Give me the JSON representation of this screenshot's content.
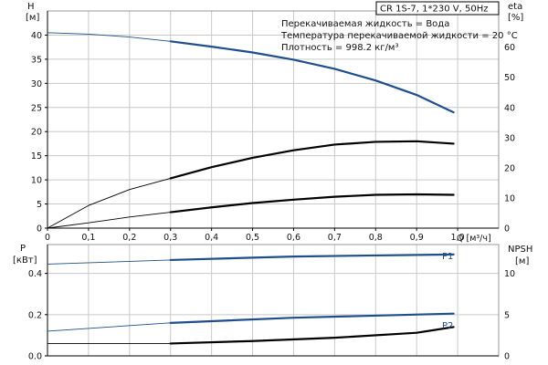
{
  "chart_data": [
    {
      "type": "line",
      "name": "top-performance",
      "ylabel": "H",
      "yunit": "[м]",
      "y2label": "eta",
      "y2unit": "[%]",
      "xlabel": "Q [м³/ч]",
      "xlim": [
        0,
        1.1
      ],
      "ylim": [
        0,
        45
      ],
      "y2lim": [
        0,
        72
      ],
      "xticks": [
        "0",
        "0,1",
        "0,2",
        "0,3",
        "0,4",
        "0,5",
        "0,6",
        "0,7",
        "0,8",
        "0,9",
        "1,0"
      ],
      "yticks": [
        "0",
        "5",
        "10",
        "15",
        "20",
        "25",
        "30",
        "35",
        "40"
      ],
      "y2ticks": [
        "0",
        "10",
        "20",
        "30",
        "40",
        "50",
        "60"
      ],
      "info_box": "CR 1S-7, 1*230 V, 50Hz",
      "annotations": [
        "Перекачиваемая жидкость = Вода",
        "Температура перекачиваемой жидкости = 20 °C",
        "Плотность = 998.2 кг/м³"
      ],
      "series": [
        {
          "axis": "left",
          "color": "#1f4e8c",
          "duty_start": 0.3,
          "x": [
            0,
            0.1,
            0.2,
            0.3,
            0.4,
            0.5,
            0.6,
            0.7,
            0.8,
            0.9,
            0.99
          ],
          "values": [
            40.5,
            40.2,
            39.6,
            38.7,
            37.6,
            36.4,
            34.9,
            33.0,
            30.6,
            27.6,
            24.0
          ]
        },
        {
          "axis": "right",
          "color": "#000000",
          "duty_start": 0.3,
          "x": [
            0,
            0.1,
            0.2,
            0.3,
            0.4,
            0.5,
            0.6,
            0.7,
            0.8,
            0.9,
            0.99
          ],
          "values": [
            0,
            7.5,
            12.8,
            16.5,
            20.2,
            23.3,
            25.8,
            27.7,
            28.6,
            28.8,
            28.0
          ]
        },
        {
          "axis": "left",
          "color": "#000000",
          "duty_start": 0.3,
          "x": [
            0,
            0.1,
            0.2,
            0.3,
            0.4,
            0.5,
            0.6,
            0.7,
            0.8,
            0.9,
            0.99
          ],
          "values": [
            0,
            1.1,
            2.3,
            3.3,
            4.3,
            5.2,
            5.9,
            6.5,
            6.9,
            7.0,
            6.9
          ]
        }
      ]
    },
    {
      "type": "line",
      "name": "bottom-power-npsh",
      "ylabel": "P",
      "yunit": "[кВт]",
      "y2label": "NPSH",
      "y2unit": "[м]",
      "xlim": [
        0,
        1.1
      ],
      "ylim": [
        0,
        0.54
      ],
      "y2lim": [
        0,
        13.5
      ],
      "yticks": [
        "0.0",
        "0.2",
        "0.4"
      ],
      "y2ticks": [
        "0",
        "5",
        "10"
      ],
      "series": [
        {
          "name": "P1",
          "axis": "left",
          "color": "#1f4e8c",
          "duty_start": 0.3,
          "x": [
            0,
            0.3,
            0.6,
            0.99
          ],
          "values": [
            0.445,
            0.465,
            0.482,
            0.492
          ]
        },
        {
          "name": "P2",
          "axis": "left",
          "color": "#1f4e8c",
          "duty_start": 0.3,
          "x": [
            0,
            0.3,
            0.6,
            0.99
          ],
          "values": [
            0.12,
            0.16,
            0.185,
            0.205
          ]
        },
        {
          "axis": "right",
          "color": "#000000",
          "duty_start": 0.3,
          "x": [
            0,
            0.3,
            0.5,
            0.7,
            0.9,
            0.99
          ],
          "values": [
            1.5,
            1.5,
            1.8,
            2.2,
            2.8,
            3.5
          ]
        }
      ]
    }
  ]
}
